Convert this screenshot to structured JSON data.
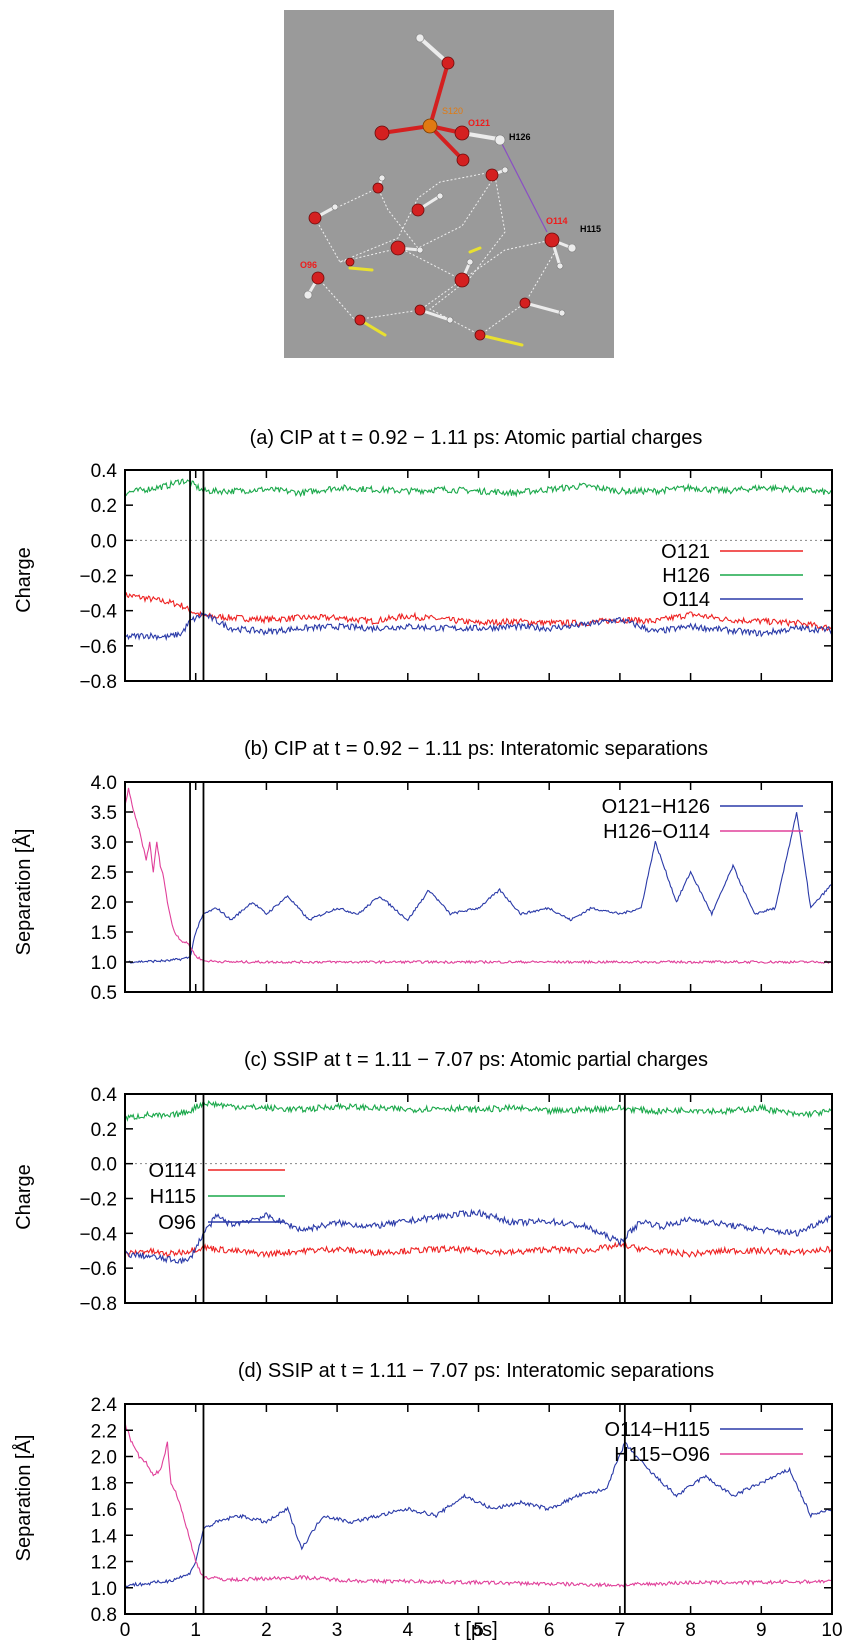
{
  "molecule": {
    "labels": {
      "s120": "S120",
      "o121": "O121",
      "h126": "H126",
      "o114": "O114",
      "h115": "H115",
      "o96": "O96"
    },
    "colors": {
      "background": "#9a9a9a",
      "oxygen": "#d42020",
      "hydrogen": "#ececec",
      "sulfur": "#e07a12",
      "red_label": "#ee1c1c",
      "black_label": "#000000"
    }
  },
  "x_axis": {
    "label": "t [ps]",
    "ticks": [
      "0",
      "1",
      "2",
      "3",
      "4",
      "5",
      "6",
      "7",
      "8",
      "9",
      "10"
    ]
  },
  "chart_data": [
    {
      "type": "line",
      "title": "(a) CIP at t = 0.92 − 1.11 ps: Atomic partial charges",
      "ylabel": "Charge",
      "xlim": [
        0,
        10
      ],
      "ylim": [
        -0.8,
        0.4
      ],
      "yticks": [
        "0.4",
        "0.2",
        "0.0",
        "−0.2",
        "−0.4",
        "−0.6",
        "−0.8"
      ],
      "vlines": [
        0.92,
        1.11
      ],
      "zero_line": true,
      "series": [
        {
          "name": "O121",
          "color": "#ee2222",
          "x": [
            0,
            0.3,
            0.6,
            0.8,
            0.92,
            1.11,
            1.5,
            2,
            2.5,
            3,
            3.5,
            4,
            4.5,
            5,
            5.5,
            6,
            6.5,
            7,
            7.5,
            8,
            8.5,
            9,
            9.5,
            10
          ],
          "y": [
            -0.31,
            -0.33,
            -0.35,
            -0.37,
            -0.4,
            -0.43,
            -0.44,
            -0.45,
            -0.44,
            -0.44,
            -0.46,
            -0.43,
            -0.45,
            -0.47,
            -0.46,
            -0.47,
            -0.47,
            -0.45,
            -0.46,
            -0.42,
            -0.45,
            -0.46,
            -0.47,
            -0.5
          ]
        },
        {
          "name": "H126",
          "color": "#1aa84a",
          "x": [
            0,
            0.3,
            0.6,
            0.8,
            0.92,
            1.11,
            1.5,
            2,
            2.5,
            3,
            3.5,
            4,
            4.5,
            5,
            5.5,
            6,
            6.5,
            7,
            7.5,
            8,
            8.5,
            9,
            9.5,
            10
          ],
          "y": [
            0.27,
            0.29,
            0.31,
            0.34,
            0.33,
            0.28,
            0.28,
            0.29,
            0.27,
            0.3,
            0.29,
            0.28,
            0.29,
            0.28,
            0.27,
            0.29,
            0.31,
            0.28,
            0.28,
            0.3,
            0.28,
            0.3,
            0.29,
            0.27
          ]
        },
        {
          "name": "O114",
          "color": "#2a3aa8",
          "x": [
            0,
            0.3,
            0.6,
            0.8,
            0.92,
            1.11,
            1.5,
            2,
            2.5,
            3,
            3.5,
            4,
            4.5,
            5,
            5.5,
            6,
            6.5,
            7,
            7.5,
            8,
            8.5,
            9,
            9.5,
            10
          ],
          "y": [
            -0.55,
            -0.54,
            -0.55,
            -0.53,
            -0.46,
            -0.42,
            -0.5,
            -0.52,
            -0.5,
            -0.49,
            -0.5,
            -0.49,
            -0.5,
            -0.5,
            -0.49,
            -0.5,
            -0.48,
            -0.45,
            -0.52,
            -0.49,
            -0.51,
            -0.53,
            -0.5,
            -0.51
          ]
        }
      ]
    },
    {
      "type": "line",
      "title": "(b) CIP at t = 0.92 − 1.11 ps: Interatomic separations",
      "ylabel": "Separation [Å]",
      "xlim": [
        0,
        10
      ],
      "ylim": [
        0.5,
        4.0
      ],
      "yticks": [
        "4.0",
        "3.5",
        "3.0",
        "2.5",
        "2.0",
        "1.5",
        "1.0",
        "0.5"
      ],
      "vlines": [
        0.92,
        1.11
      ],
      "series": [
        {
          "name": "O121−H126",
          "color": "#2a3aa8",
          "x": [
            0,
            0.3,
            0.6,
            0.8,
            0.92,
            1.0,
            1.11,
            1.3,
            1.5,
            1.8,
            2,
            2.3,
            2.6,
            3,
            3.3,
            3.6,
            4,
            4.3,
            4.6,
            5,
            5.3,
            5.6,
            6,
            6.3,
            6.6,
            7,
            7.3,
            7.5,
            7.8,
            8,
            8.3,
            8.6,
            8.9,
            9.2,
            9.5,
            9.7,
            10
          ],
          "y": [
            1.0,
            1.01,
            1.02,
            1.05,
            1.08,
            1.5,
            1.8,
            1.9,
            1.7,
            2.0,
            1.8,
            2.1,
            1.7,
            1.9,
            1.8,
            2.1,
            1.7,
            2.2,
            1.8,
            1.9,
            2.2,
            1.8,
            1.9,
            1.7,
            1.9,
            1.8,
            1.9,
            3.0,
            2.0,
            2.5,
            1.8,
            2.6,
            1.8,
            1.9,
            3.5,
            1.9,
            2.3
          ]
        },
        {
          "name": "H126−O114",
          "color": "#e0409a",
          "x": [
            0,
            0.05,
            0.1,
            0.2,
            0.3,
            0.35,
            0.4,
            0.45,
            0.5,
            0.55,
            0.6,
            0.65,
            0.7,
            0.8,
            0.9,
            1.0,
            1.11,
            1.5,
            2,
            3,
            4,
            5,
            6,
            7,
            8,
            9,
            10
          ],
          "y": [
            3.6,
            3.9,
            3.6,
            3.2,
            2.7,
            3.0,
            2.5,
            3.0,
            2.6,
            2.4,
            2.0,
            1.7,
            1.5,
            1.35,
            1.3,
            1.1,
            1.02,
            1.0,
            1.0,
            1.0,
            1.0,
            1.0,
            1.0,
            1.0,
            1.0,
            1.0,
            1.0
          ]
        }
      ]
    },
    {
      "type": "line",
      "title": "(c) SSIP at t = 1.11 − 7.07 ps: Atomic partial charges",
      "ylabel": "Charge",
      "xlim": [
        0,
        10
      ],
      "ylim": [
        -0.8,
        0.4
      ],
      "yticks": [
        "0.4",
        "0.2",
        "0.0",
        "−0.2",
        "−0.4",
        "−0.6",
        "−0.8"
      ],
      "vlines": [
        1.11,
        7.07
      ],
      "zero_line": true,
      "series": [
        {
          "name": "O114",
          "color": "#ee2222",
          "x": [
            0,
            0.3,
            0.6,
            0.9,
            1.11,
            1.5,
            2,
            2.5,
            3,
            3.5,
            4,
            4.5,
            5,
            5.5,
            6,
            6.5,
            7,
            7.5,
            8,
            8.5,
            9,
            9.5,
            10
          ],
          "y": [
            -0.52,
            -0.5,
            -0.52,
            -0.5,
            -0.48,
            -0.5,
            -0.52,
            -0.5,
            -0.49,
            -0.51,
            -0.5,
            -0.49,
            -0.5,
            -0.51,
            -0.49,
            -0.5,
            -0.47,
            -0.5,
            -0.52,
            -0.5,
            -0.5,
            -0.51,
            -0.49
          ]
        },
        {
          "name": "H115",
          "color": "#1aa84a",
          "x": [
            0,
            0.3,
            0.6,
            0.9,
            1.11,
            1.5,
            2,
            2.5,
            3,
            3.5,
            4,
            4.5,
            5,
            5.5,
            6,
            6.5,
            7,
            7.5,
            8,
            8.5,
            9,
            9.5,
            10
          ],
          "y": [
            0.26,
            0.28,
            0.27,
            0.3,
            0.35,
            0.33,
            0.32,
            0.31,
            0.33,
            0.32,
            0.31,
            0.32,
            0.31,
            0.32,
            0.3,
            0.31,
            0.32,
            0.3,
            0.31,
            0.3,
            0.32,
            0.28,
            0.3
          ]
        },
        {
          "name": "O96",
          "color": "#2a3aa8",
          "x": [
            0,
            0.3,
            0.6,
            0.9,
            1.11,
            1.3,
            1.5,
            2,
            2.5,
            3,
            3.5,
            4,
            4.5,
            5,
            5.5,
            6,
            6.5,
            7,
            7.3,
            7.6,
            8,
            8.5,
            9,
            9.5,
            10
          ],
          "y": [
            -0.52,
            -0.53,
            -0.55,
            -0.56,
            -0.4,
            -0.3,
            -0.35,
            -0.3,
            -0.38,
            -0.34,
            -0.36,
            -0.33,
            -0.3,
            -0.28,
            -0.34,
            -0.33,
            -0.36,
            -0.45,
            -0.33,
            -0.36,
            -0.32,
            -0.35,
            -0.38,
            -0.4,
            -0.3
          ]
        }
      ]
    },
    {
      "type": "line",
      "title": "(d) SSIP at t = 1.11 − 7.07 ps: Interatomic separations",
      "ylabel": "Separation [Å]",
      "xlabel": "t [ps]",
      "xlim": [
        0,
        10
      ],
      "ylim": [
        0.8,
        2.4
      ],
      "yticks": [
        "2.4",
        "2.2",
        "2.0",
        "1.8",
        "1.6",
        "1.4",
        "1.2",
        "1.0",
        "0.8"
      ],
      "vlines": [
        1.11,
        7.07
      ],
      "series": [
        {
          "name": "O114−H115",
          "color": "#2a3aa8",
          "x": [
            0,
            0.3,
            0.6,
            0.9,
            1.0,
            1.11,
            1.3,
            1.6,
            2,
            2.3,
            2.5,
            2.8,
            3.2,
            3.6,
            4,
            4.4,
            4.8,
            5.2,
            5.6,
            6,
            6.4,
            6.8,
            7.07,
            7.4,
            7.8,
            8.2,
            8.6,
            9,
            9.4,
            9.7,
            10
          ],
          "y": [
            1.02,
            1.03,
            1.05,
            1.1,
            1.2,
            1.45,
            1.5,
            1.55,
            1.5,
            1.6,
            1.3,
            1.55,
            1.5,
            1.55,
            1.6,
            1.55,
            1.7,
            1.6,
            1.65,
            1.6,
            1.7,
            1.75,
            2.1,
            1.9,
            1.7,
            1.85,
            1.7,
            1.8,
            1.9,
            1.55,
            1.6
          ]
        },
        {
          "name": "H115−O96",
          "color": "#e0409a",
          "x": [
            0,
            0.1,
            0.2,
            0.3,
            0.4,
            0.5,
            0.6,
            0.65,
            0.7,
            0.8,
            0.9,
            1.0,
            1.11,
            1.5,
            2,
            2.5,
            3,
            3.5,
            4,
            5,
            6,
            7,
            8,
            9,
            10
          ],
          "y": [
            2.25,
            2.1,
            2.0,
            1.95,
            1.85,
            1.9,
            2.1,
            1.8,
            1.75,
            1.6,
            1.4,
            1.2,
            1.08,
            1.06,
            1.07,
            1.08,
            1.06,
            1.05,
            1.05,
            1.04,
            1.03,
            1.02,
            1.04,
            1.04,
            1.05
          ]
        }
      ]
    }
  ]
}
